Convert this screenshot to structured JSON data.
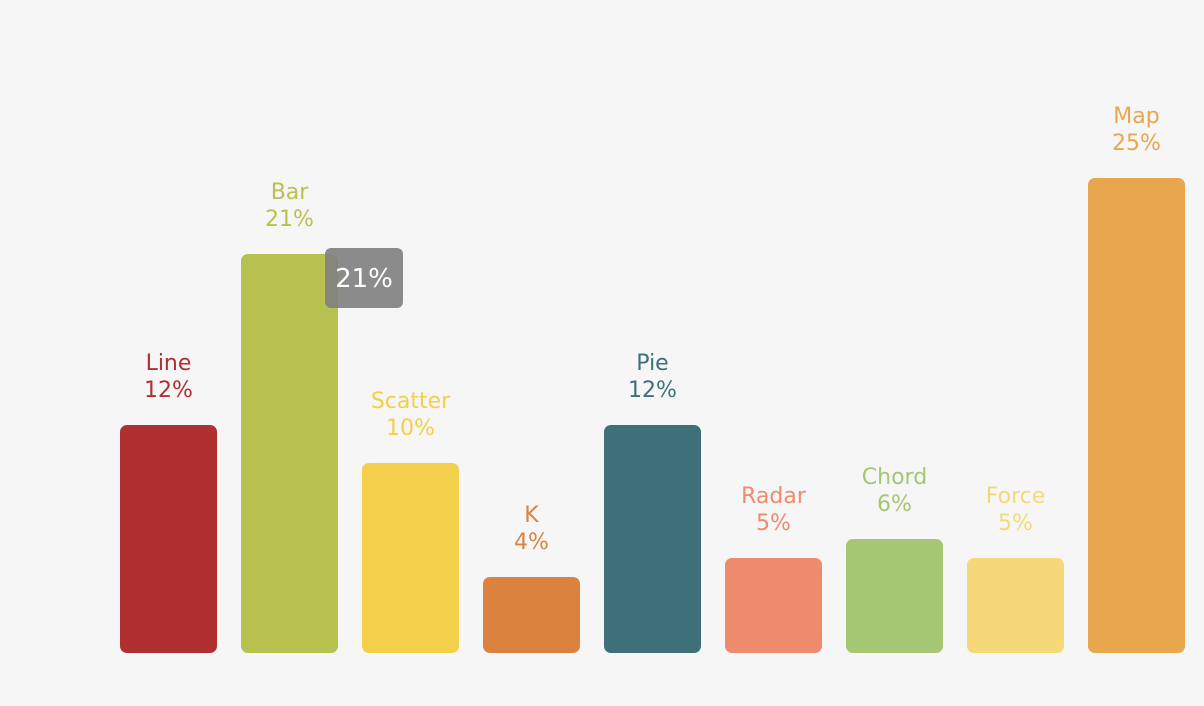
{
  "chart_data": {
    "type": "bar",
    "categories": [
      "Line",
      "Bar",
      "Scatter",
      "K",
      "Pie",
      "Radar",
      "Chord",
      "Force",
      "Map"
    ],
    "values": [
      12,
      21,
      10,
      4,
      12,
      5,
      6,
      5,
      25
    ],
    "value_labels": [
      "12%",
      "21%",
      "10%",
      "4%",
      "12%",
      "5%",
      "6%",
      "5%",
      "25%"
    ],
    "colors": [
      "#b03032",
      "#b8c050",
      "#f3cf4a",
      "#db833e",
      "#3e707a",
      "#ef8b6d",
      "#a5c673",
      "#f5d978",
      "#e8a74f"
    ],
    "title": "",
    "xlabel": "",
    "ylabel": "",
    "ylim": [
      0,
      25
    ],
    "grid": false,
    "legend": "none"
  },
  "tooltip": {
    "category_index": 1,
    "text": "21%"
  }
}
